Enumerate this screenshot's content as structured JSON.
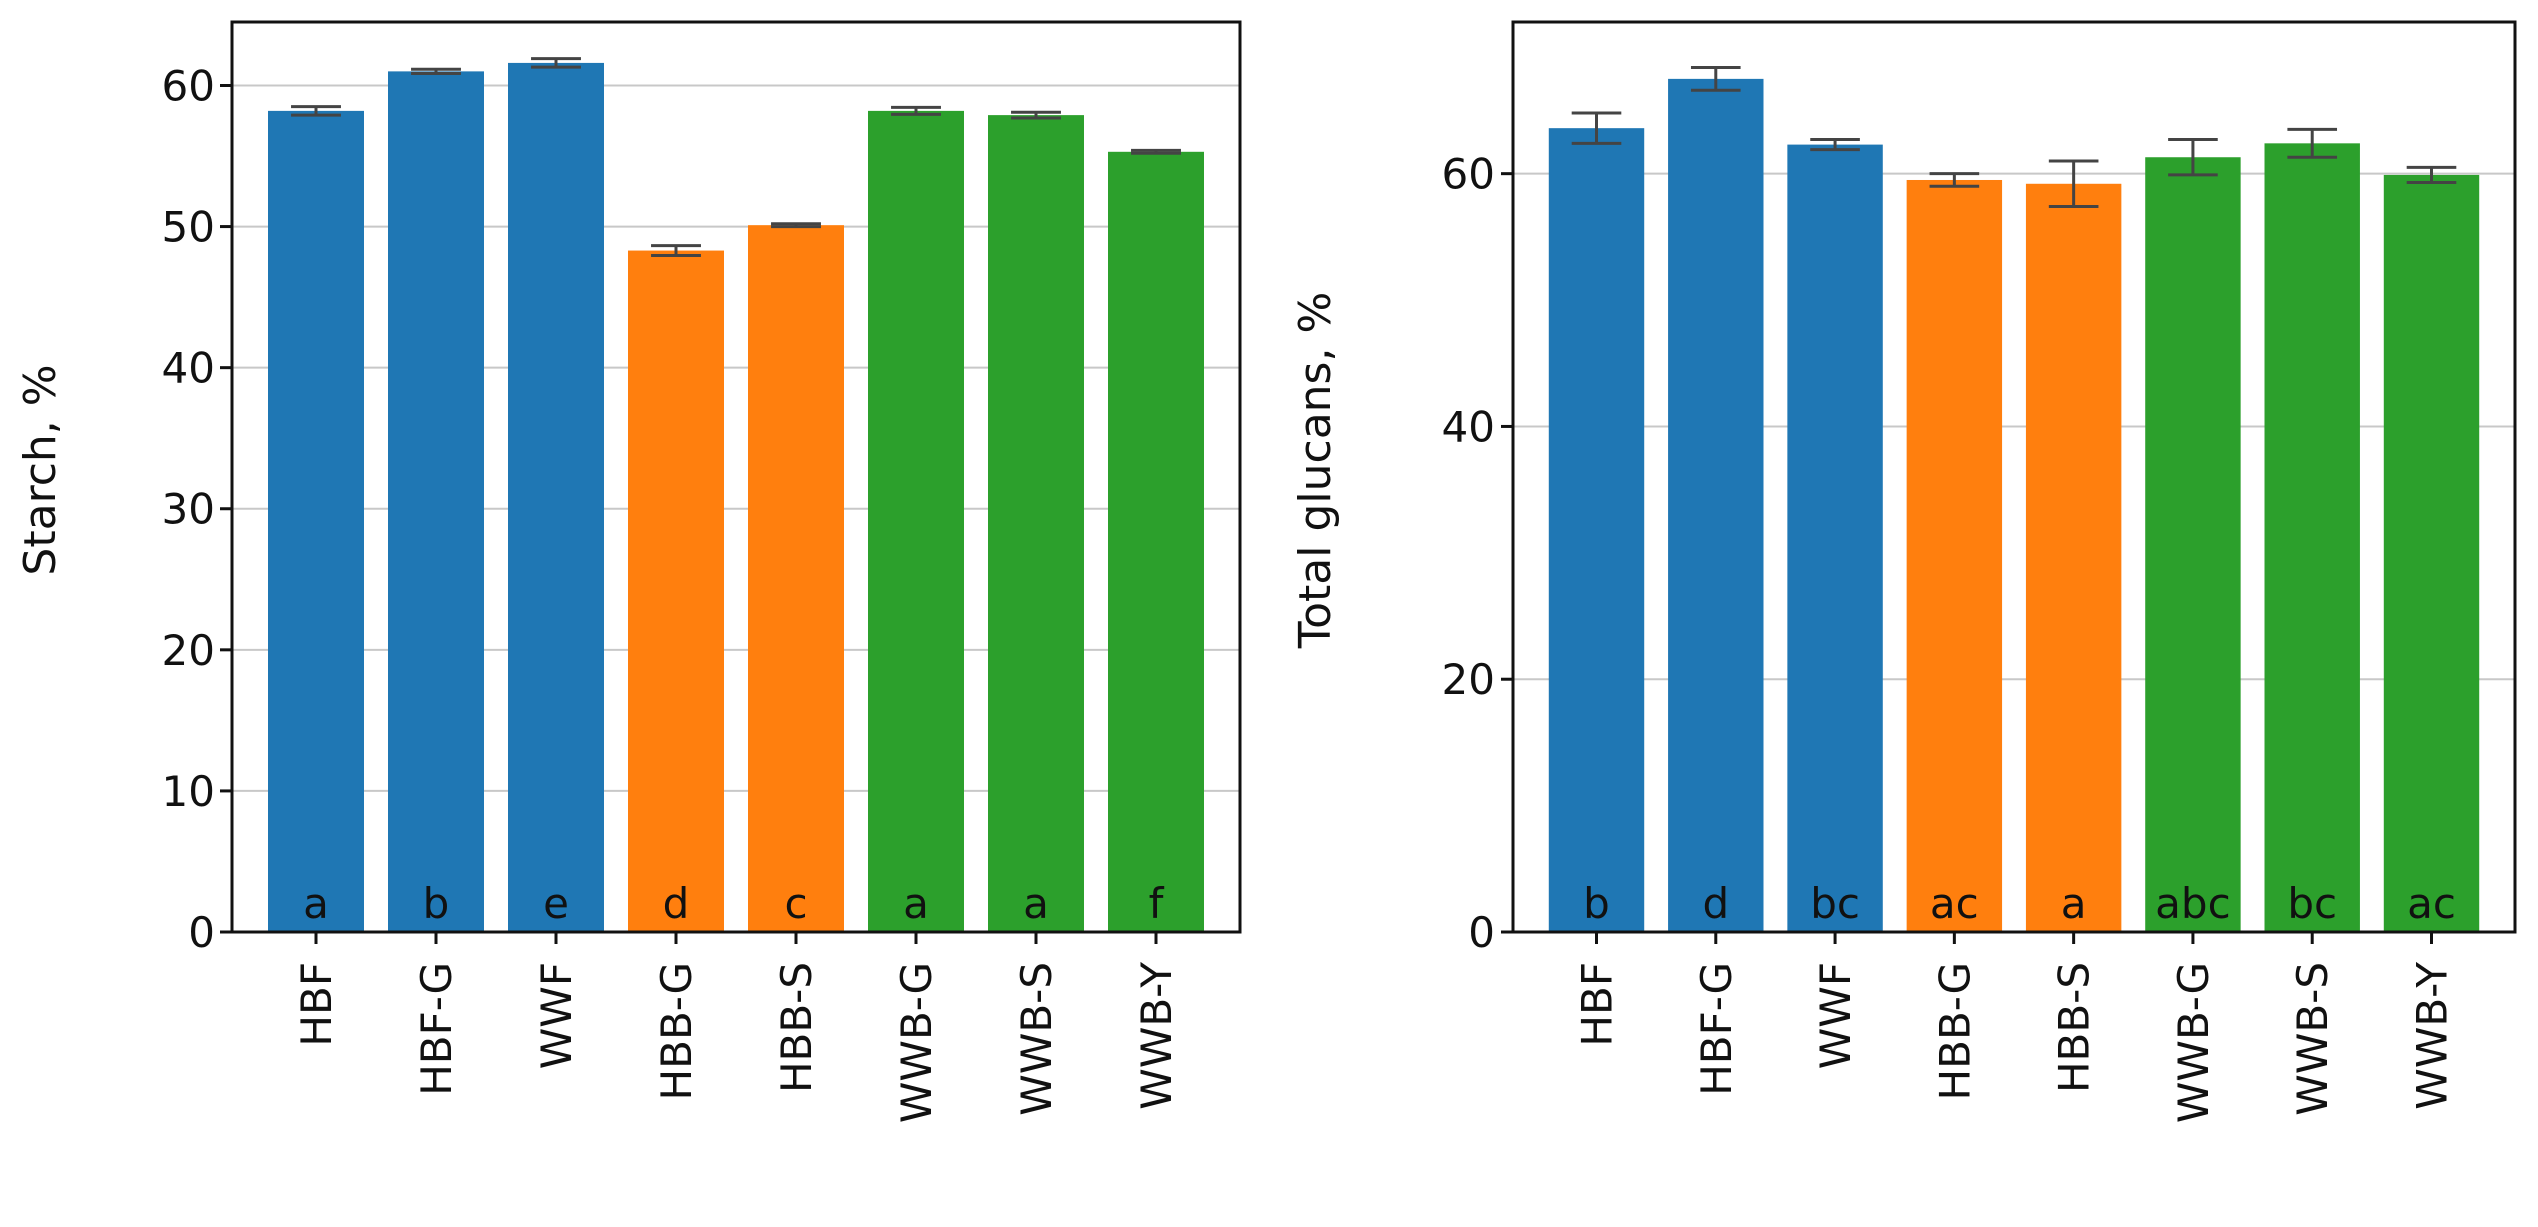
{
  "colors": {
    "blue": "#1f77b4",
    "orange": "#ff7f0e",
    "green": "#2ca02c",
    "grid": "#c8c8c8",
    "errorbar": "#444444"
  },
  "chart_data": [
    {
      "type": "bar",
      "title": "",
      "xlabel": "",
      "ylabel": "Starch, %",
      "ylim": [
        0,
        64.5
      ],
      "yticks": [
        0,
        10,
        20,
        30,
        40,
        50,
        60
      ],
      "grid": "y",
      "categories": [
        "HBF",
        "HBF-G",
        "WWF",
        "HBB-G",
        "HBB-S",
        "WWB-G",
        "WWB-S",
        "WWB-Y"
      ],
      "groups": [
        "blue",
        "blue",
        "blue",
        "orange",
        "orange",
        "green",
        "green",
        "green"
      ],
      "values": [
        58.2,
        61.0,
        61.6,
        48.3,
        50.1,
        58.2,
        57.9,
        55.3
      ],
      "errors": [
        0.3,
        0.15,
        0.3,
        0.35,
        0.1,
        0.25,
        0.2,
        0.1
      ],
      "letters": [
        "a",
        "b",
        "e",
        "d",
        "c",
        "a",
        "a",
        "f"
      ]
    },
    {
      "type": "bar",
      "title": "",
      "xlabel": "",
      "ylabel": "Total glucans, %",
      "ylim": [
        0,
        72
      ],
      "yticks": [
        0,
        20,
        40,
        60
      ],
      "grid": "y",
      "categories": [
        "HBF",
        "HBF-G",
        "WWF",
        "HBB-G",
        "HBB-S",
        "WWB-G",
        "WWB-S",
        "WWB-Y"
      ],
      "groups": [
        "blue",
        "blue",
        "blue",
        "orange",
        "orange",
        "green",
        "green",
        "green"
      ],
      "values": [
        63.6,
        67.5,
        62.3,
        59.5,
        59.2,
        61.3,
        62.4,
        59.9
      ],
      "errors": [
        1.2,
        0.9,
        0.4,
        0.5,
        1.8,
        1.4,
        1.1,
        0.6
      ],
      "letters": [
        "b",
        "d",
        "bc",
        "ac",
        "a",
        "abc",
        "bc",
        "ac"
      ]
    }
  ]
}
